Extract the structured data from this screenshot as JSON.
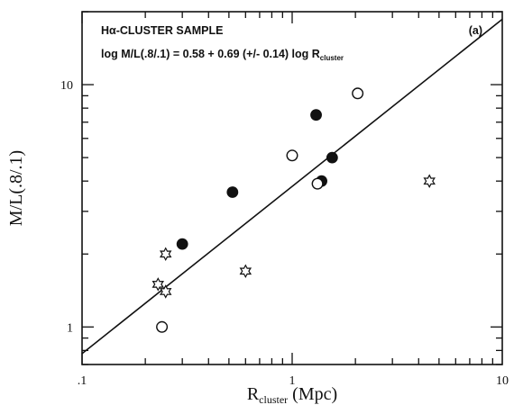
{
  "chart_data": {
    "type": "scatter",
    "title": "Hα-CLUSTER SAMPLE",
    "panel_label": "(a)",
    "fit_equation": {
      "text": "log M/L(.8/.1) = 0.58 + 0.69 (+/- 0.14) log R",
      "subscript": "cluster",
      "intercept": 0.58,
      "slope": 0.69
    },
    "xlabel": {
      "main": "R",
      "sub": "cluster",
      "units": " (Mpc)"
    },
    "ylabel": "M/L(.8/.1)",
    "xscale": "log",
    "yscale": "log",
    "xlim": [
      0.1,
      10
    ],
    "ylim": [
      0.7,
      20
    ],
    "x_ticks": [
      {
        "value": 0.1,
        "label": ".1"
      },
      {
        "value": 1,
        "label": "1"
      },
      {
        "value": 10,
        "label": "10"
      }
    ],
    "y_ticks": [
      {
        "value": 1,
        "label": "1"
      },
      {
        "value": 10,
        "label": "10"
      }
    ],
    "grid": false,
    "legend": "none",
    "series": [
      {
        "marker": "filled-circle",
        "points": [
          {
            "x": 0.3,
            "y": 2.2
          },
          {
            "x": 0.52,
            "y": 3.6
          },
          {
            "x": 1.3,
            "y": 7.5
          },
          {
            "x": 1.38,
            "y": 4.0
          },
          {
            "x": 1.55,
            "y": 5.0
          }
        ]
      },
      {
        "marker": "open-circle",
        "points": [
          {
            "x": 0.24,
            "y": 1.0
          },
          {
            "x": 1.0,
            "y": 5.1
          },
          {
            "x": 1.32,
            "y": 3.9
          },
          {
            "x": 2.05,
            "y": 9.2
          }
        ]
      },
      {
        "marker": "star",
        "points": [
          {
            "x": 0.23,
            "y": 1.5
          },
          {
            "x": 0.25,
            "y": 2.0
          },
          {
            "x": 0.25,
            "y": 1.4
          },
          {
            "x": 0.6,
            "y": 1.7
          },
          {
            "x": 4.5,
            "y": 4.0
          }
        ]
      }
    ],
    "colors": {
      "ink": "#111111",
      "background": "#ffffff"
    }
  }
}
